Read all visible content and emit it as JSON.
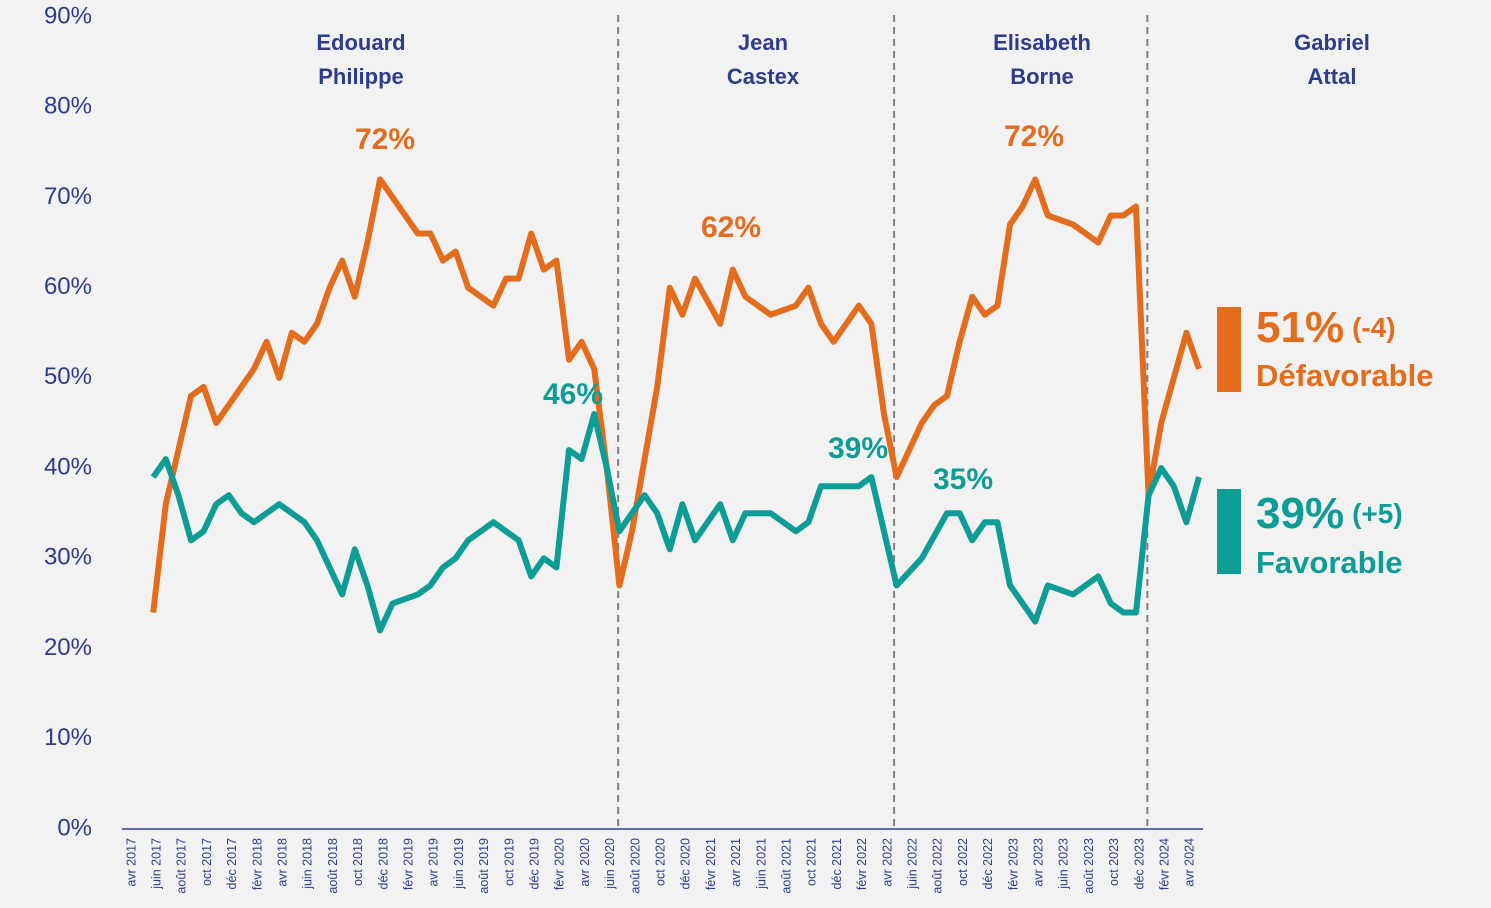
{
  "chart_data": {
    "type": "line",
    "categories": [
      "avr 2017",
      null,
      "juin 2017",
      null,
      "août 2017",
      null,
      "oct 2017",
      null,
      "déc 2017",
      null,
      "févr 2018",
      null,
      "avr 2018",
      null,
      "juin 2018",
      null,
      "août 2018",
      null,
      "oct 2018",
      null,
      "déc 2018",
      null,
      "févr 2019",
      null,
      "avr 2019",
      null,
      "juin 2019",
      null,
      "août 2019",
      null,
      "oct 2019",
      null,
      "déc 2019",
      null,
      "févr 2020",
      null,
      "avr 2020",
      null,
      "juin 2020",
      null,
      "août 2020",
      null,
      "oct 2020",
      null,
      "déc 2020",
      null,
      "févr 2021",
      null,
      "avr 2021",
      null,
      "juin 2021",
      null,
      "août 2021",
      null,
      "oct 2021",
      null,
      "déc 2021",
      null,
      "févr 2022",
      null,
      "avr 2022",
      null,
      "juin 2022",
      null,
      "août 2022",
      null,
      "oct 2022",
      null,
      "déc 2022",
      null,
      "févr 2023",
      null,
      "avr 2023",
      null,
      "juin 2023",
      null,
      "août 2023",
      null,
      "oct 2023",
      null,
      "déc 2023",
      null,
      "févr 2024",
      null,
      "avr 2024",
      null
    ],
    "series": [
      {
        "name": "Défavorable",
        "color": "#e36c1d",
        "last_label": "51%",
        "change": "(-4)",
        "values": [
          null,
          null,
          24,
          36,
          42,
          48,
          49,
          45,
          47,
          49,
          51,
          54,
          50,
          55,
          54,
          56,
          60,
          63,
          59,
          65,
          72,
          70,
          68,
          66,
          66,
          63,
          64,
          60,
          59,
          58,
          61,
          61,
          66,
          62,
          63,
          52,
          54,
          51,
          40,
          27,
          33,
          41,
          49,
          60,
          57,
          61,
          58.5,
          56,
          62,
          59,
          58,
          57,
          57.5,
          58,
          60,
          56,
          54,
          56,
          58,
          56,
          46,
          39,
          42,
          45,
          47,
          48,
          54,
          59,
          57,
          58,
          67,
          69,
          72,
          68,
          67.5,
          67,
          66,
          65,
          68,
          68,
          69,
          37,
          45,
          50,
          55,
          51
        ]
      },
      {
        "name": "Favorable",
        "color": "#0e9c96",
        "last_label": "39%",
        "change": "(+5)",
        "values": [
          null,
          null,
          39,
          41,
          37,
          32,
          33,
          36,
          37,
          35,
          34,
          35,
          36,
          35,
          34,
          32,
          29,
          26,
          31,
          27,
          22,
          25,
          25.5,
          26,
          27,
          29,
          30,
          32,
          33,
          34,
          33,
          32,
          28,
          30,
          29,
          42,
          41,
          46,
          40,
          33,
          35,
          37,
          35,
          31,
          36,
          32,
          34,
          36,
          32,
          35,
          35,
          35,
          34,
          33,
          34,
          38,
          38,
          38,
          38,
          39,
          33,
          27,
          28.5,
          30,
          32.5,
          35,
          35,
          32,
          34,
          34,
          27,
          25,
          23,
          27,
          26.5,
          26,
          27,
          28,
          25,
          24,
          24,
          37,
          40,
          38,
          34,
          39
        ]
      }
    ],
    "annotations": [
      "72%",
      "62%",
      "46%",
      "39%",
      "35%",
      "72%"
    ],
    "periods": [
      [
        "Edouard",
        "Philippe"
      ],
      [
        "Jean",
        "Castex"
      ],
      [
        "Elisabeth",
        "Borne"
      ],
      [
        "Gabriel",
        "Attal"
      ]
    ],
    "ylim": [
      0,
      90
    ],
    "yticks": [
      {
        "value": 0,
        "label": "0%"
      },
      {
        "value": 10,
        "label": "10%"
      },
      {
        "value": 20,
        "label": "20%"
      },
      {
        "value": 30,
        "label": "30%"
      },
      {
        "value": 40,
        "label": "40%"
      },
      {
        "value": 50,
        "label": "50%"
      },
      {
        "value": 60,
        "label": "60%"
      },
      {
        "value": 70,
        "label": "70%"
      },
      {
        "value": 80,
        "label": "80%"
      },
      {
        "value": 90,
        "label": "90%"
      }
    ]
  }
}
